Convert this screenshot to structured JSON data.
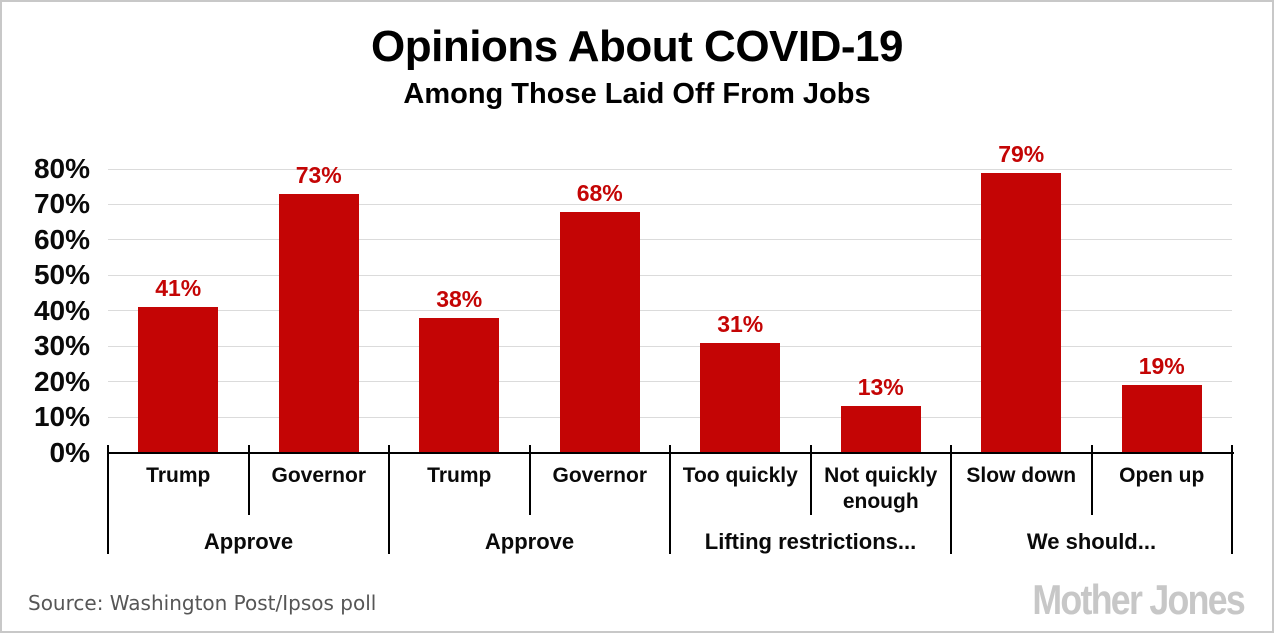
{
  "chart_data": {
    "type": "bar",
    "title": "Opinions About COVID-19",
    "subtitle": "Among Those Laid Off From Jobs",
    "categories": [
      "Trump",
      "Governor",
      "Trump",
      "Governor",
      "Too quickly",
      "Not quickly enough",
      "Slow down",
      "Open up"
    ],
    "values": [
      41,
      73,
      38,
      68,
      31,
      13,
      79,
      19
    ],
    "value_labels": [
      "41%",
      "73%",
      "38%",
      "68%",
      "31%",
      "13%",
      "79%",
      "19%"
    ],
    "groups": [
      {
        "label": "Approve",
        "start": 0,
        "span": 2
      },
      {
        "label": "Approve",
        "start": 2,
        "span": 2
      },
      {
        "label": "Lifting restrictions...",
        "start": 4,
        "span": 2
      },
      {
        "label": "We should...",
        "start": 6,
        "span": 2
      }
    ],
    "y_axis": {
      "min": 0,
      "max": 80,
      "tick_step": 10,
      "tick_labels": [
        "0%",
        "10%",
        "20%",
        "30%",
        "40%",
        "50%",
        "60%",
        "70%",
        "80%"
      ]
    },
    "grid": true,
    "legend": "none",
    "colors": {
      "bar": "#C40505",
      "value_label": "#C40505",
      "gridline": "#DBDBDB",
      "axis": "#000000"
    }
  },
  "footer": {
    "source": "Source: Washington Post/Ipsos poll",
    "logo": "Mother Jones"
  }
}
